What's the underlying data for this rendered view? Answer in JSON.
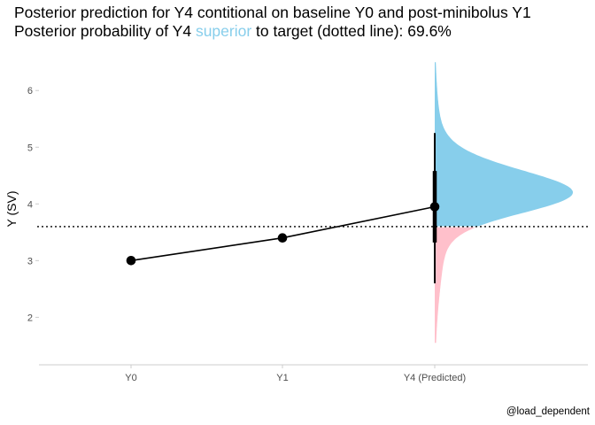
{
  "chart_data": {
    "type": "line",
    "title_line1": "Posterior prediction for Y4 contitional on baseline Y0 and post-minibolus Y1",
    "title_line2_pre": "Posterior probability of Y4 ",
    "title_line2_highlight": "superior",
    "title_line2_post": " to target (dotted line): 69.6%",
    "xlabel": "",
    "ylabel": "Y (SV)",
    "categories": [
      "Y0",
      "Y1",
      "Y4 (Predicted)"
    ],
    "values": [
      3.0,
      3.4,
      3.95
    ],
    "ylim": [
      1.35,
      6.55
    ],
    "yticks": [
      2,
      3,
      4,
      5,
      6
    ],
    "target_line": 3.6,
    "predicted_interval_inner": [
      3.32,
      4.58
    ],
    "predicted_interval_outer": [
      2.6,
      5.25
    ],
    "posterior_density": {
      "mean": 3.96,
      "sd": 0.48,
      "skew": 3.0,
      "range": [
        1.55,
        6.5
      ]
    },
    "probability_superior": "69.6%",
    "caption": "@load_dependent",
    "colors": {
      "superior": "#87CEEB",
      "inferior": "#FFC0CB",
      "line": "#000000",
      "axis": "#cccccc",
      "text": "#4d4d4d"
    }
  }
}
